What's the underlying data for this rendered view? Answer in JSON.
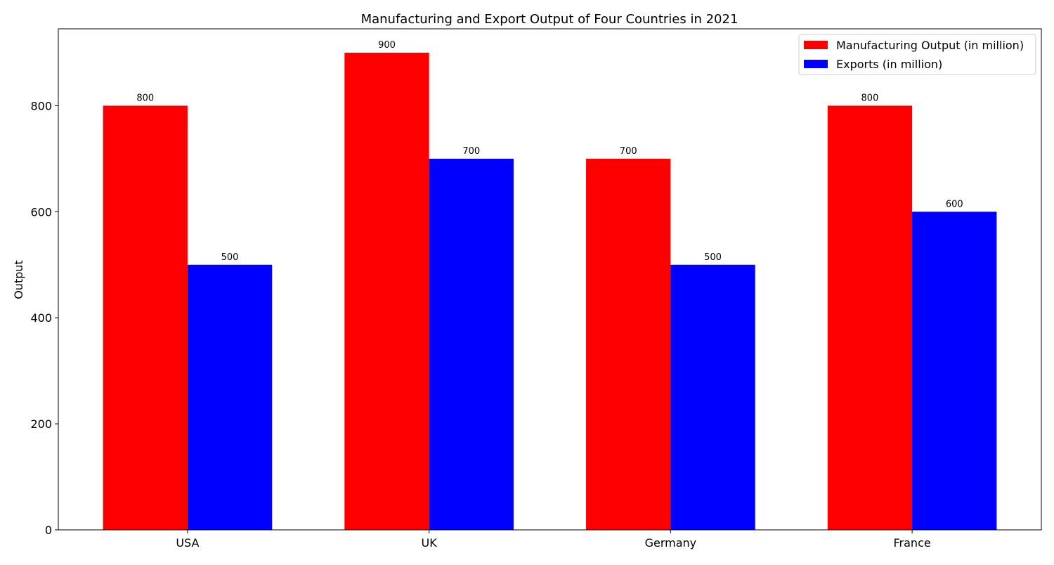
{
  "chart_data": {
    "type": "bar",
    "title": "Manufacturing and Export Output of Four Countries in 2021",
    "xlabel": "",
    "ylabel": "Output",
    "categories": [
      "USA",
      "UK",
      "Germany",
      "France"
    ],
    "series": [
      {
        "name": "Manufacturing Output (in million)",
        "color": "#ff0000",
        "values": [
          800,
          900,
          700,
          800
        ]
      },
      {
        "name": "Exports (in million)",
        "color": "#0000ff",
        "values": [
          500,
          700,
          500,
          600
        ]
      }
    ],
    "ylim": [
      0,
      945
    ],
    "yticks": [
      0,
      200,
      400,
      600,
      800
    ],
    "grid": false,
    "legend_position": "top-right",
    "data_labels": true
  }
}
